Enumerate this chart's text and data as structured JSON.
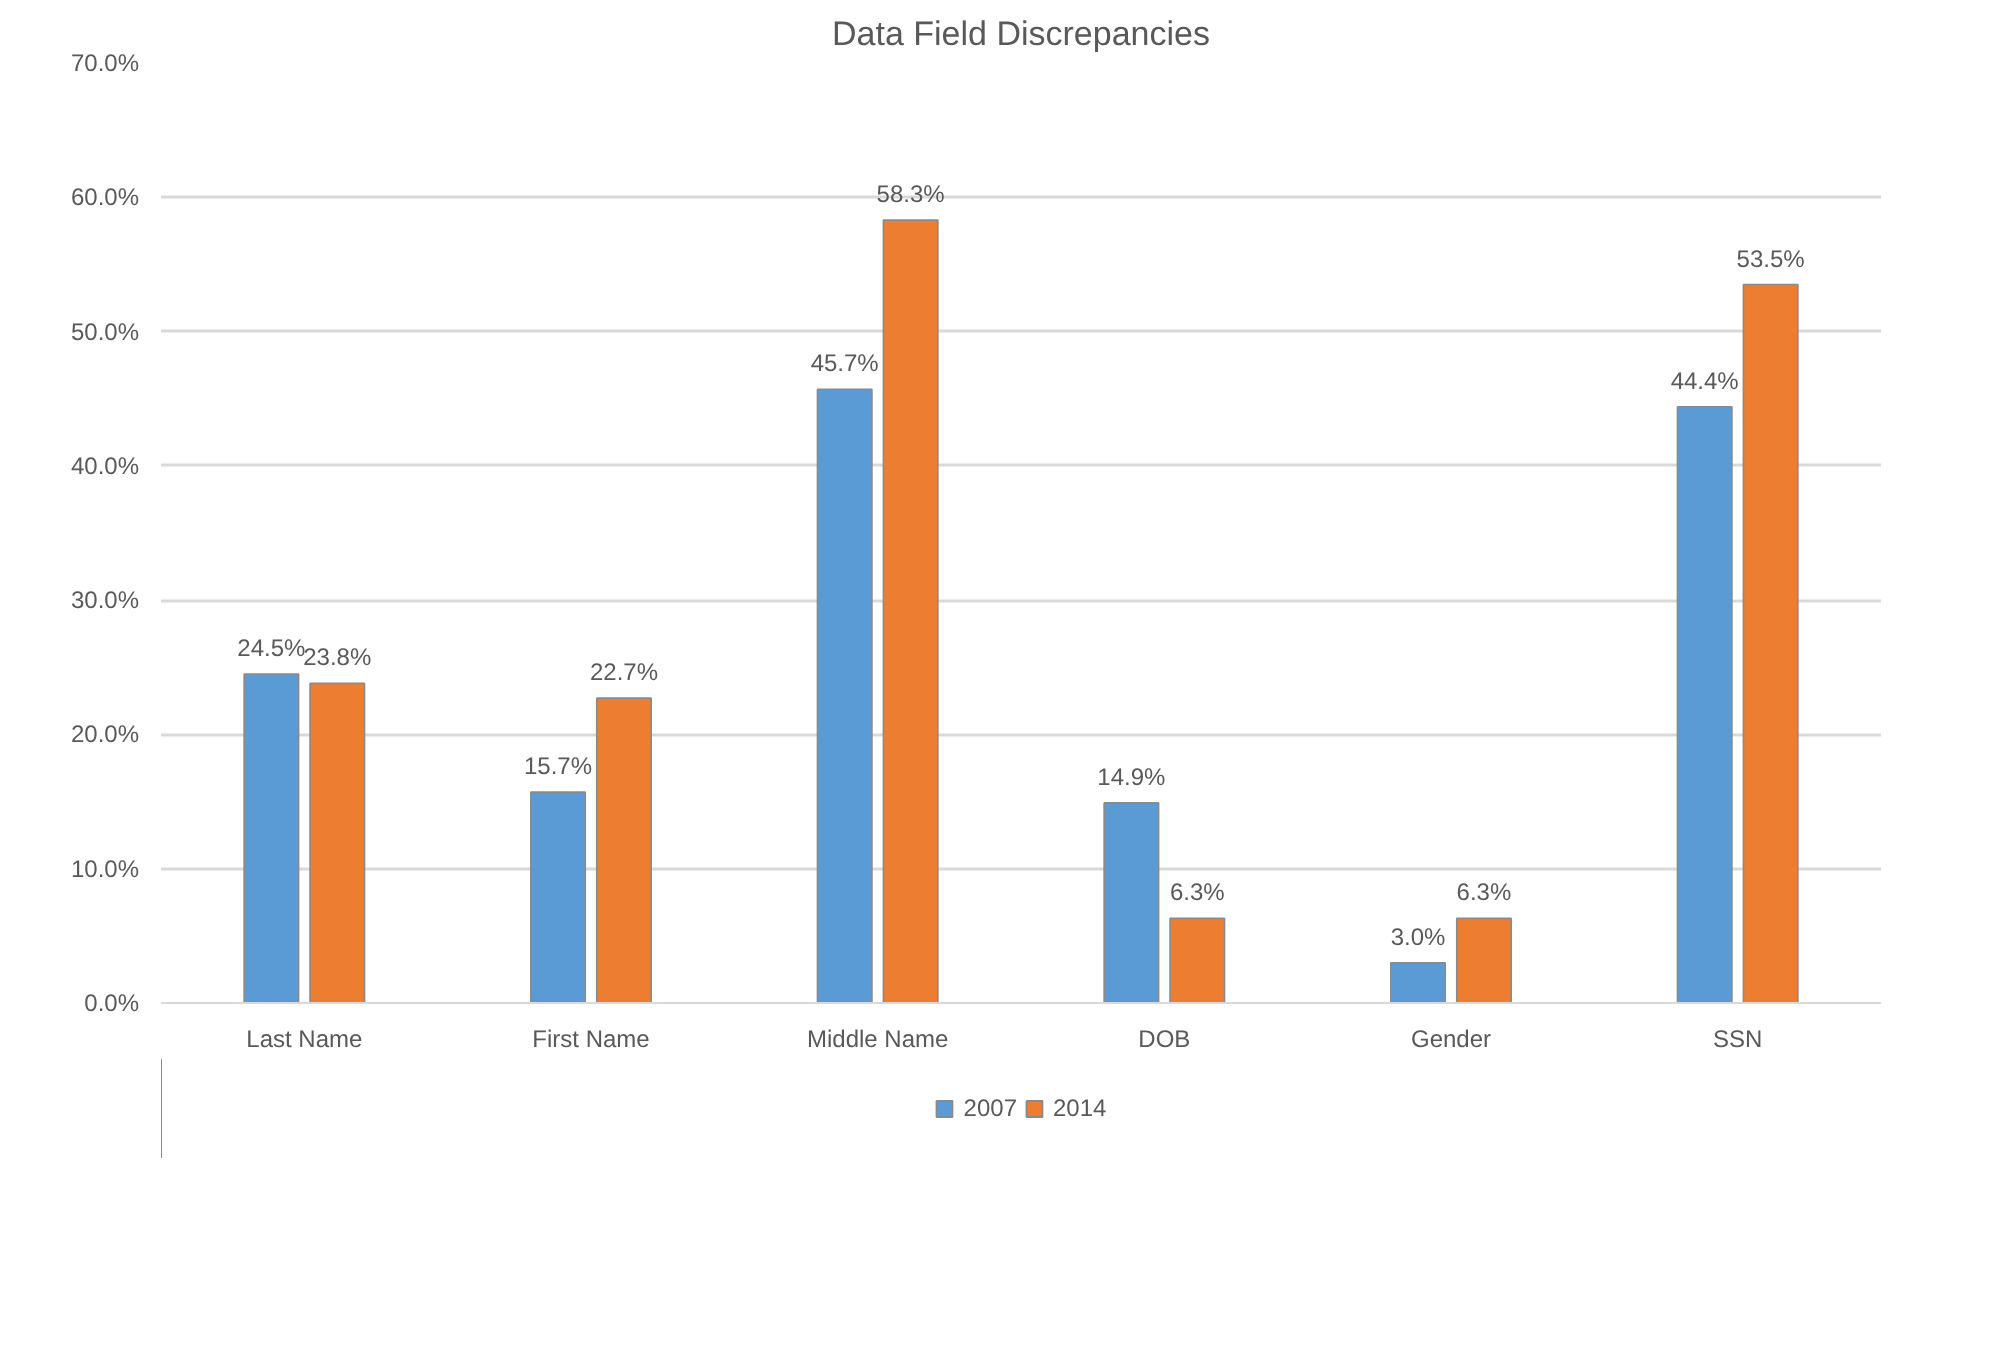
{
  "chart_data": {
    "type": "bar",
    "title": "Data Field Discrepancies",
    "categories": [
      "Last Name",
      "First Name",
      "Middle Name",
      "DOB",
      "Gender",
      "SSN"
    ],
    "series": [
      {
        "name": "2007",
        "color": "#5b9bd5",
        "values": [
          24.5,
          15.7,
          45.7,
          14.9,
          3.0,
          44.4
        ],
        "value_labels": [
          "24.5%",
          "15.7%",
          "45.7%",
          "14.9%",
          "3.0%",
          "44.4%"
        ]
      },
      {
        "name": "2014",
        "color": "#ed7d31",
        "values": [
          23.8,
          22.7,
          58.3,
          6.3,
          6.3,
          53.5
        ],
        "value_labels": [
          "23.8%",
          "22.7%",
          "58.3%",
          "6.3%",
          "6.3%",
          "53.5%"
        ]
      }
    ],
    "ylim": [
      0,
      70
    ],
    "yticks": [
      {
        "value": 0,
        "label": "0.0%"
      },
      {
        "value": 10,
        "label": "10.0%"
      },
      {
        "value": 20,
        "label": "20.0%"
      },
      {
        "value": 30,
        "label": "30.0%"
      },
      {
        "value": 40,
        "label": "40.0%"
      },
      {
        "value": 50,
        "label": "50.0%"
      },
      {
        "value": 60,
        "label": "60.0%"
      },
      {
        "value": 70,
        "label": "70.0%"
      }
    ],
    "grid": "y",
    "legend": "bottom"
  }
}
